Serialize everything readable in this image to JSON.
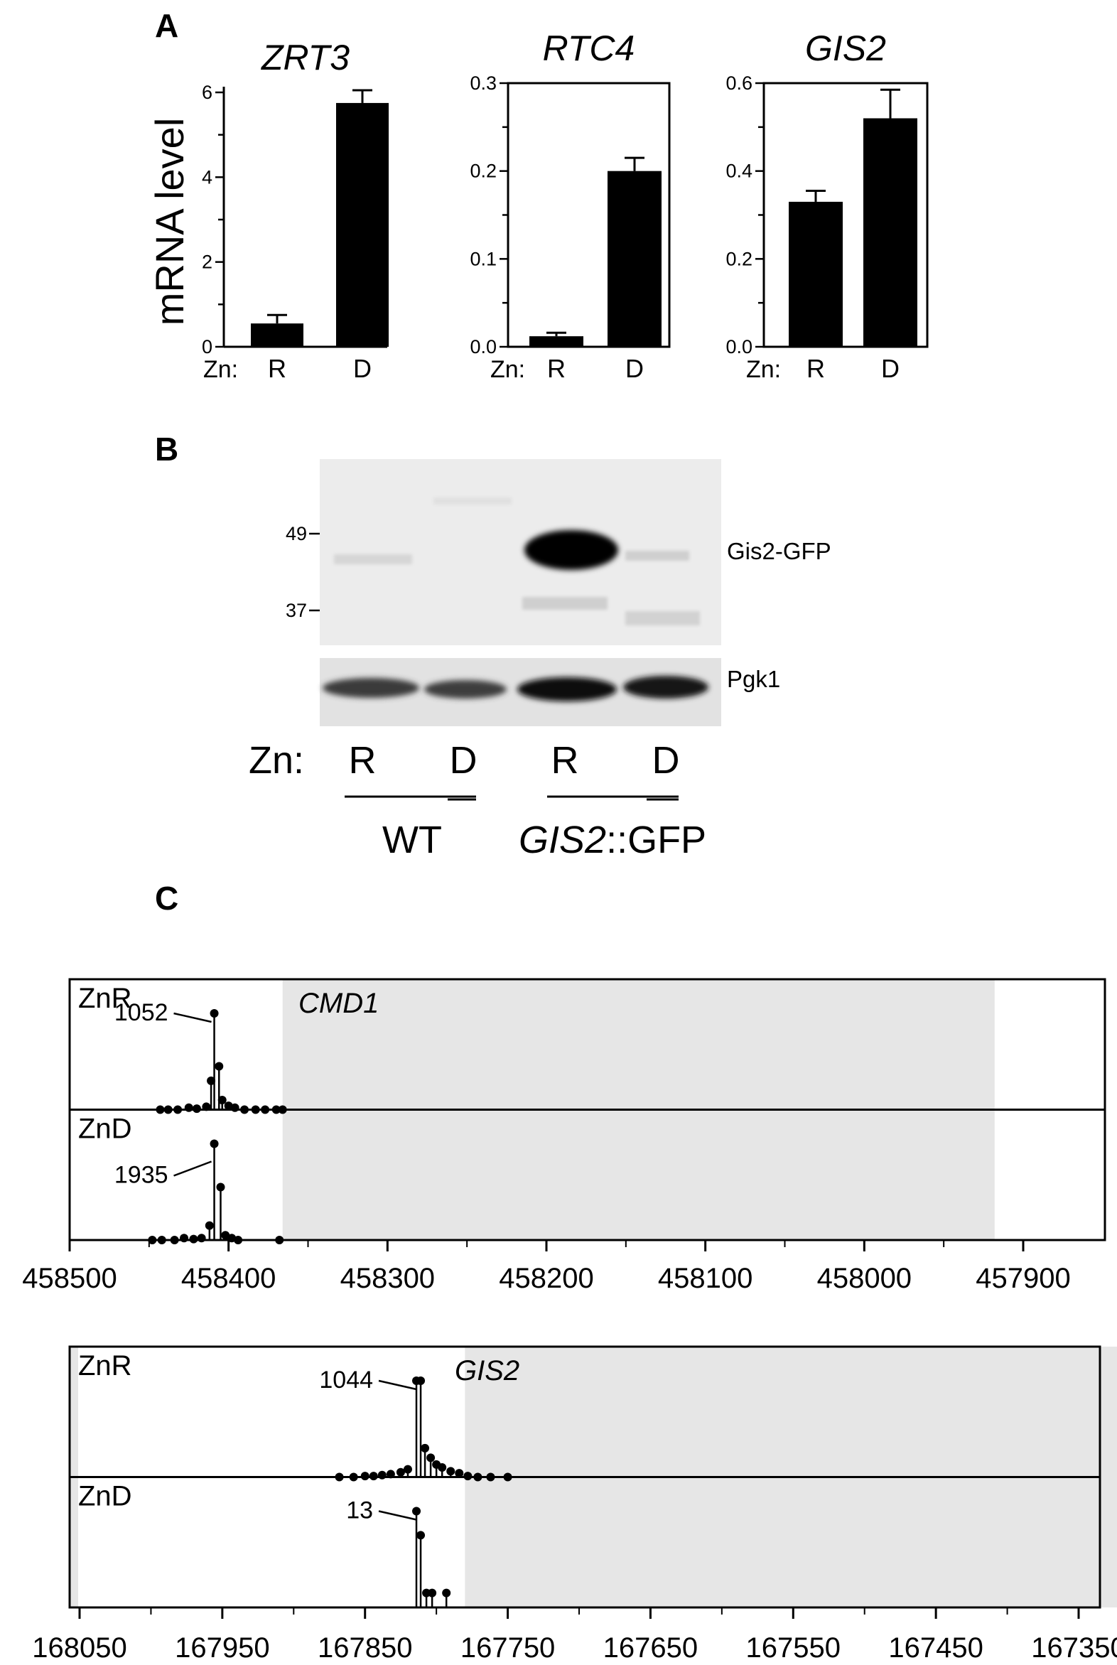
{
  "panels": {
    "a": {
      "label": "A"
    },
    "b": {
      "label": "B"
    },
    "c": {
      "label": "C"
    }
  },
  "chart_data": [
    {
      "type": "bar",
      "panel": "A",
      "title": "ZRT3",
      "ylabel": "mRNA level",
      "categories": [
        "R",
        "D"
      ],
      "values": [
        0.55,
        5.75
      ],
      "errors": [
        0.2,
        0.3
      ],
      "ylim": [
        0,
        6
      ],
      "yticks": [
        "0",
        "2",
        "4",
        "6"
      ],
      "xprefix": "Zn:"
    },
    {
      "type": "bar",
      "panel": "A",
      "title": "RTC4",
      "ylabel": "",
      "categories": [
        "R",
        "D"
      ],
      "values": [
        0.012,
        0.2
      ],
      "errors": [
        0.004,
        0.015
      ],
      "ylim": [
        0,
        0.3
      ],
      "yticks": [
        "0.0",
        "0.1",
        "0.2",
        "0.3"
      ],
      "xprefix": "Zn:"
    },
    {
      "type": "bar",
      "panel": "A",
      "title": "GIS2",
      "ylabel": "",
      "categories": [
        "R",
        "D"
      ],
      "values": [
        0.33,
        0.52
      ],
      "errors": [
        0.025,
        0.065
      ],
      "ylim": [
        0,
        0.6
      ],
      "yticks": [
        "0.0",
        "0.2",
        "0.4",
        "0.6"
      ],
      "xprefix": "Zn:"
    },
    {
      "type": "scatter",
      "panel": "C",
      "gene": "CMD1",
      "xlim": [
        458500,
        457840
      ],
      "xticks": [
        458500,
        458400,
        458300,
        458200,
        458100,
        458000,
        457900
      ],
      "gene_span": [
        458366,
        457918
      ],
      "tracks": [
        {
          "name": "ZnR",
          "peak_label": "1052",
          "peak_x": 458409,
          "points": [
            {
              "x": 458443,
              "y": 0
            },
            {
              "x": 458438,
              "y": 0
            },
            {
              "x": 458432,
              "y": 0
            },
            {
              "x": 458425,
              "y": 0.02
            },
            {
              "x": 458420,
              "y": 0.01
            },
            {
              "x": 458414,
              "y": 0.03
            },
            {
              "x": 458411,
              "y": 0.3
            },
            {
              "x": 458409,
              "y": 1.0
            },
            {
              "x": 458406,
              "y": 0.45
            },
            {
              "x": 458404,
              "y": 0.1
            },
            {
              "x": 458400,
              "y": 0.04
            },
            {
              "x": 458396,
              "y": 0.02
            },
            {
              "x": 458390,
              "y": 0
            },
            {
              "x": 458383,
              "y": 0
            },
            {
              "x": 458377,
              "y": 0
            },
            {
              "x": 458370,
              "y": 0
            },
            {
              "x": 458366,
              "y": 0
            }
          ]
        },
        {
          "name": "ZnD",
          "peak_label": "1935",
          "peak_x": 458409,
          "points": [
            {
              "x": 458448,
              "y": 0
            },
            {
              "x": 458442,
              "y": 0
            },
            {
              "x": 458434,
              "y": 0
            },
            {
              "x": 458428,
              "y": 0.02
            },
            {
              "x": 458422,
              "y": 0.01
            },
            {
              "x": 458417,
              "y": 0.02
            },
            {
              "x": 458412,
              "y": 0.15
            },
            {
              "x": 458409,
              "y": 1.0
            },
            {
              "x": 458405,
              "y": 0.55
            },
            {
              "x": 458402,
              "y": 0.05
            },
            {
              "x": 458398,
              "y": 0.02
            },
            {
              "x": 458394,
              "y": 0
            },
            {
              "x": 458368,
              "y": 0
            }
          ]
        }
      ]
    },
    {
      "type": "scatter",
      "panel": "C",
      "gene": "GIS2",
      "xlim": [
        168050,
        167285
      ],
      "xticks": [
        168050,
        167950,
        167850,
        167750,
        167650,
        167550,
        167450,
        167350
      ],
      "gene_span": [
        167780,
        167300
      ],
      "tracks": [
        {
          "name": "ZnR",
          "peak_label": "1044",
          "peak_x": 167812,
          "points": [
            {
              "x": 167868,
              "y": 0
            },
            {
              "x": 167858,
              "y": 0
            },
            {
              "x": 167850,
              "y": 0.01
            },
            {
              "x": 167844,
              "y": 0.01
            },
            {
              "x": 167838,
              "y": 0.02
            },
            {
              "x": 167832,
              "y": 0.03
            },
            {
              "x": 167825,
              "y": 0.05
            },
            {
              "x": 167820,
              "y": 0.08
            },
            {
              "x": 167814,
              "y": 1.0
            },
            {
              "x": 167811,
              "y": 1.0
            },
            {
              "x": 167808,
              "y": 0.3
            },
            {
              "x": 167804,
              "y": 0.2
            },
            {
              "x": 167800,
              "y": 0.13
            },
            {
              "x": 167796,
              "y": 0.1
            },
            {
              "x": 167790,
              "y": 0.06
            },
            {
              "x": 167784,
              "y": 0.04
            },
            {
              "x": 167778,
              "y": 0.01
            },
            {
              "x": 167771,
              "y": 0
            },
            {
              "x": 167762,
              "y": 0
            },
            {
              "x": 167750,
              "y": 0
            }
          ]
        },
        {
          "name": "ZnD",
          "peak_label": "13",
          "peak_x": 167812,
          "points": [
            {
              "x": 167814,
              "y": 1.0
            },
            {
              "x": 167811,
              "y": 0.75
            },
            {
              "x": 167807,
              "y": 0.15
            },
            {
              "x": 167803,
              "y": 0.15
            },
            {
              "x": 167793,
              "y": 0.15
            }
          ]
        }
      ]
    }
  ],
  "blot": {
    "markers": [
      "49",
      "37"
    ],
    "bands": [
      "Gis2-GFP",
      "Pgk1"
    ],
    "zn_label": "Zn:",
    "lanes": [
      "R",
      "D",
      "R",
      "D"
    ],
    "groups": [
      {
        "label": "WT",
        "italic": "",
        "rest": "WT"
      },
      {
        "label": "GIS2::GFP",
        "italic": "GIS2",
        "rest": "::GFP"
      }
    ]
  }
}
